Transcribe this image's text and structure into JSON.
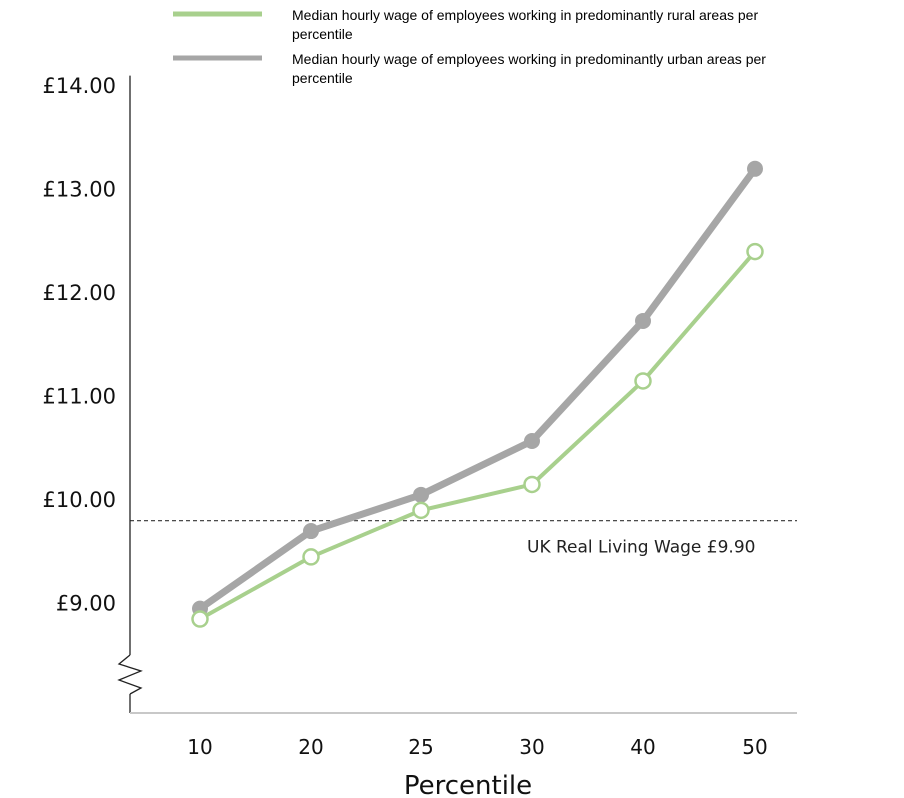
{
  "chart_data": {
    "type": "line",
    "title": "",
    "xlabel": "Percentile",
    "ylabel": "",
    "categories": [
      "10",
      "20",
      "25",
      "30",
      "40",
      "50"
    ],
    "ylim": [
      7.9,
      14.0
    ],
    "y_ticks": [
      9.0,
      10.0,
      11.0,
      12.0,
      13.0,
      14.0
    ],
    "y_tick_labels": [
      "£9.00",
      "£10.00",
      "£11.00",
      "£12.00",
      "£13.00",
      "£14.00"
    ],
    "axis_break": "y-axis below £9.00",
    "grid": false,
    "legend_position": "top",
    "series": [
      {
        "name": "Median hourly wage of employees working in predominantly rural areas per percentile",
        "values": [
          8.85,
          9.45,
          9.9,
          10.15,
          11.15,
          12.4
        ],
        "color": "#a8d08d",
        "marker": "open-circle",
        "legend_lines": [
          "Median hourly wage of employees working in predominantly rural areas per",
          "percentile"
        ]
      },
      {
        "name": "Median hourly wage of employees working in predominantly urban areas per percentile",
        "values": [
          8.95,
          9.7,
          10.05,
          10.57,
          11.73,
          13.2
        ],
        "color": "#a6a6a6",
        "marker": "filled-circle",
        "legend_lines": [
          "Median hourly wage of employees working in predominantly urban areas per",
          "percentile"
        ]
      }
    ],
    "reference_line": {
      "value": 9.9,
      "label": "UK Real Living Wage £9.90",
      "style": "dashed",
      "color": "#333333"
    }
  }
}
